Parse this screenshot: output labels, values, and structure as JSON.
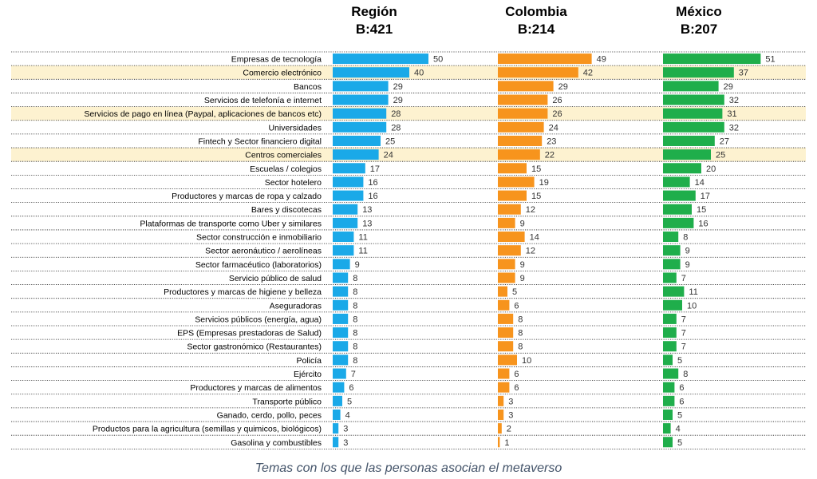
{
  "chart_data": {
    "type": "bar",
    "orientation": "horizontal",
    "caption": "Temas con los que las personas asocian el metaverso",
    "categories": [
      "Empresas de tecnología",
      "Comercio electrónico",
      "Bancos",
      "Servicios de telefonía e internet",
      "Servicios de pago en línea (Paypal, aplicaciones de bancos etc)",
      "Universidades",
      "Fintech y Sector financiero digital",
      "Centros comerciales",
      "Escuelas / colegios",
      "Sector hotelero",
      "Productores y marcas de ropa y calzado",
      "Bares y discotecas",
      "Plataformas de transporte como Uber y similares",
      "Sector construcción e inmobiliario",
      "Sector aeronáutico / aerolíneas",
      "Sector farmacéutico (laboratorios)",
      "Servicio público de salud",
      "Productores y marcas de higiene y belleza",
      "Aseguradoras",
      "Servicios públicos (energía, agua)",
      "EPS (Empresas prestadoras de Salud)",
      "Sector gastronómico (Restaurantes)",
      "Policía",
      "Ejército",
      "Productores y marcas de alimentos",
      "Transporte público",
      "Ganado, cerdo, pollo, peces",
      "Productos para la agricultura (semillas y quimicos, biológicos)",
      "Gasolina y combustibles"
    ],
    "highlighted": [
      "Comercio electrónico",
      "Servicios de pago en línea (Paypal, aplicaciones de bancos etc)",
      "Centros comerciales"
    ],
    "highlight_color": "#fdf2d0",
    "series": [
      {
        "name": "Región",
        "base": "B:421",
        "color": "#1aa9e8",
        "values": [
          50,
          40,
          29,
          29,
          28,
          28,
          25,
          24,
          17,
          16,
          16,
          13,
          13,
          11,
          11,
          9,
          8,
          8,
          8,
          8,
          8,
          8,
          8,
          7,
          6,
          5,
          4,
          3,
          3
        ]
      },
      {
        "name": "Colombia",
        "base": "B:214",
        "color": "#f7941d",
        "values": [
          49,
          42,
          29,
          26,
          26,
          24,
          23,
          22,
          15,
          19,
          15,
          12,
          9,
          14,
          12,
          9,
          9,
          5,
          6,
          8,
          8,
          8,
          10,
          6,
          6,
          3,
          3,
          2,
          1
        ]
      },
      {
        "name": "México",
        "base": "B:207",
        "color": "#1fae4b",
        "values": [
          51,
          37,
          29,
          32,
          31,
          32,
          27,
          25,
          20,
          14,
          17,
          15,
          16,
          8,
          9,
          9,
          7,
          11,
          10,
          7,
          7,
          7,
          5,
          8,
          6,
          6,
          5,
          4,
          5
        ]
      }
    ]
  }
}
